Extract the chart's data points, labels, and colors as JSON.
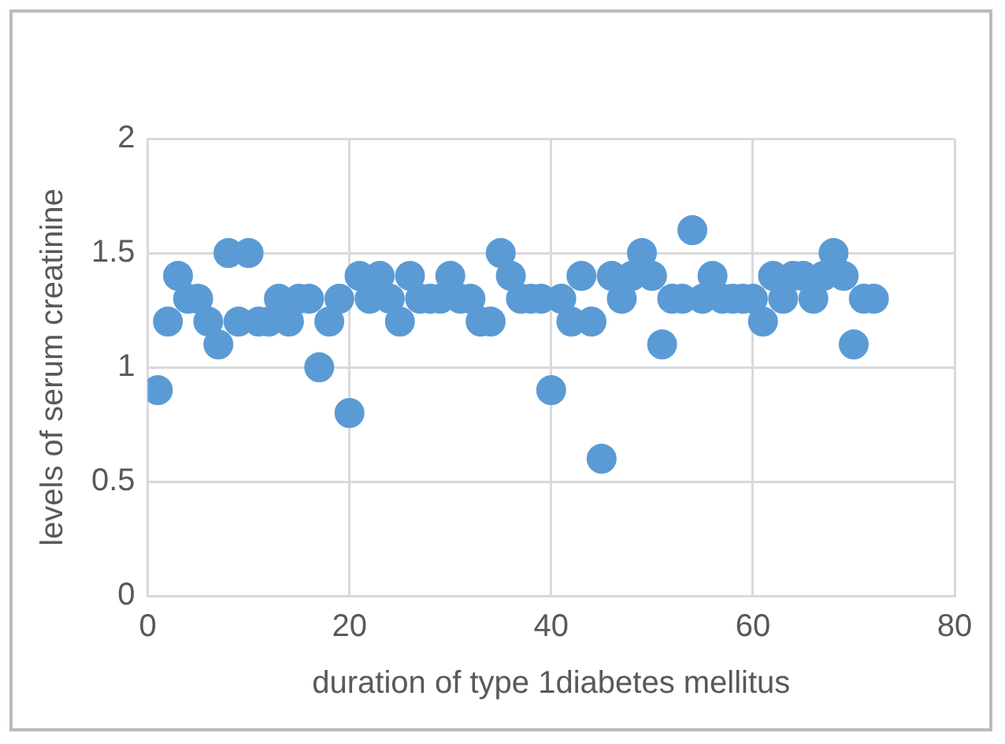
{
  "chart_data": {
    "type": "scatter",
    "xlabel": "duration of type 1diabetes mellitus",
    "ylabel": "levels of serum creatinine",
    "x": [
      1,
      2,
      3,
      4,
      5,
      6,
      7,
      8,
      9,
      10,
      11,
      12,
      13,
      14,
      15,
      16,
      17,
      18,
      19,
      20,
      21,
      22,
      23,
      24,
      25,
      26,
      27,
      28,
      29,
      30,
      31,
      32,
      33,
      34,
      35,
      36,
      37,
      38,
      39,
      40,
      41,
      42,
      43,
      44,
      45,
      46,
      47,
      48,
      49,
      50,
      51,
      52,
      53,
      54,
      55,
      56,
      57,
      58,
      59,
      60,
      61,
      62,
      63,
      64,
      65,
      66,
      67,
      68,
      69,
      70,
      71,
      72
    ],
    "series": [
      {
        "color": "#5b9bd5",
        "values": [
          0.9,
          1.2,
          1.4,
          1.3,
          1.3,
          1.2,
          1.1,
          1.5,
          1.2,
          1.5,
          1.2,
          1.2,
          1.3,
          1.2,
          1.3,
          1.3,
          1.0,
          1.2,
          1.3,
          0.8,
          1.4,
          1.3,
          1.4,
          1.3,
          1.2,
          1.4,
          1.3,
          1.3,
          1.3,
          1.4,
          1.3,
          1.3,
          1.2,
          1.2,
          1.5,
          1.4,
          1.3,
          1.3,
          1.3,
          0.9,
          1.3,
          1.2,
          1.4,
          1.2,
          0.6,
          1.4,
          1.3,
          1.4,
          1.5,
          1.4,
          1.1,
          1.3,
          1.3,
          1.6,
          1.3,
          1.4,
          1.3,
          1.3,
          1.3,
          1.3,
          1.2,
          1.4,
          1.3,
          1.4,
          1.4,
          1.3,
          1.4,
          1.5,
          1.4,
          1.1,
          1.3,
          1.3
        ]
      }
    ],
    "xlim": [
      0,
      80
    ],
    "xticks": [
      0,
      20,
      40,
      60,
      80
    ],
    "ylim": [
      0,
      2
    ],
    "yticks": [
      0,
      0.5,
      1,
      1.5,
      2
    ],
    "grid": true,
    "marker": "circle"
  }
}
